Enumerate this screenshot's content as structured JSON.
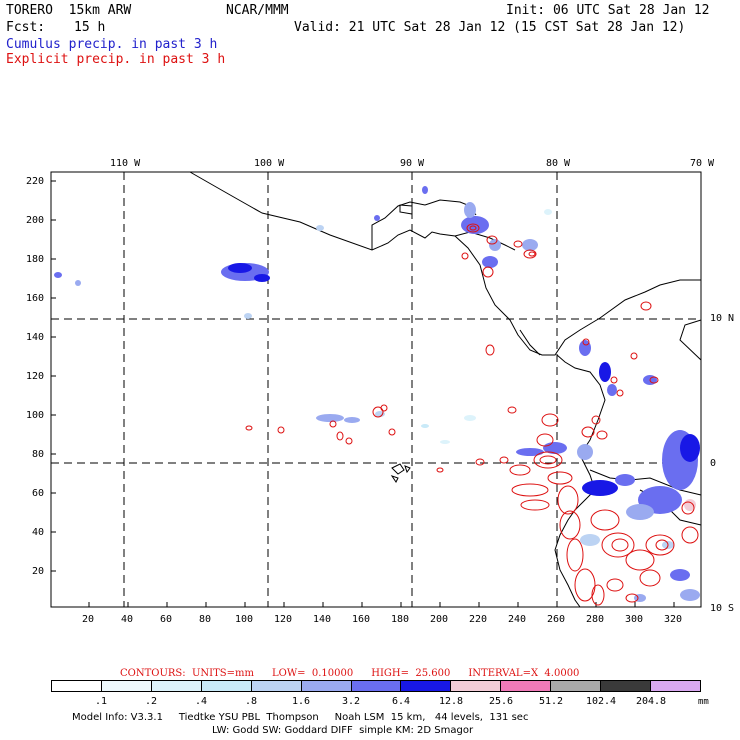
{
  "header": {
    "model": "TORERO  15km ARW",
    "org": "NCAR/MMM",
    "init": "Init: 06 UTC Sat 28 Jan 12",
    "fcst_label": "Fcst:",
    "fcst_value": "15 h",
    "valid": "Valid: 21 UTC Sat 28 Jan 12 (15 CST Sat 28 Jan 12)",
    "cumulus": "Cumulus precip. in past 3 h",
    "explicit": "Explicit precip. in past 3 h"
  },
  "map": {
    "top_lon_labels": [
      "110 W",
      "100 W",
      "90 W",
      "80 W",
      "70 W"
    ],
    "right_lat_labels": [
      "10 N",
      "0",
      "10 S"
    ],
    "y_ticks": [
      "220",
      "200",
      "180",
      "160",
      "140",
      "120",
      "100",
      "80",
      "60",
      "40",
      "20"
    ],
    "x_ticks": [
      "20",
      "40",
      "60",
      "80",
      "100",
      "120",
      "140",
      "160",
      "180",
      "200",
      "220",
      "240",
      "260",
      "280",
      "300",
      "320"
    ]
  },
  "contours": {
    "units": "CONTOURS:  UNITS=mm",
    "low": "LOW=  0.10000",
    "high": "HIGH=  25.600",
    "interval": "INTERVAL=X  4.0000"
  },
  "legend": {
    "labels": [
      ".1",
      ".2",
      ".4",
      ".8",
      "1.6",
      "3.2",
      "6.4",
      "12.8",
      "25.6",
      "51.2",
      "102.4",
      "204.8"
    ],
    "unit": "mm",
    "colors": [
      "#ffffff",
      "#eef9fd",
      "#ddf3fb",
      "#c9eaf8",
      "#bcd3f3",
      "#9aaaf0",
      "#6a6ef0",
      "#1818e6",
      "#f3cdd7",
      "#f07ab8",
      "#a9a9a9",
      "#3a3a3a",
      "#d9a8f0"
    ]
  },
  "footer": {
    "line1": "Model Info: V3.3.1     Tiedtke YSU PBL  Thompson     Noah LSM  15 km,   44 levels,  131 sec",
    "line2": "LW: Godd SW: Goddard DIFF  simple KM: 2D Smagor"
  }
}
